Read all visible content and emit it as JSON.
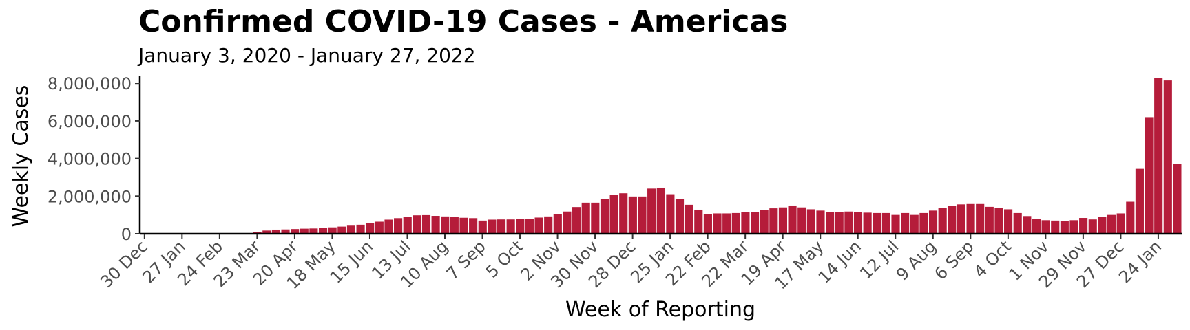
{
  "chart_data": {
    "type": "bar",
    "title": "Confirmed COVID-19 Cases - Americas",
    "subtitle": "January 3, 2020 - January 27, 2022",
    "xlabel": "Week of Reporting",
    "ylabel": "Weekly Cases",
    "ylim": [
      0,
      8300000
    ],
    "yticks": [
      0,
      2000000,
      4000000,
      6000000,
      8000000
    ],
    "ytick_labels": [
      "0",
      "2,000,000",
      "4,000,000",
      "6,000,000",
      "8,000,000"
    ],
    "xtick_labels": [
      "30 Dec",
      "27 Jan",
      "24 Feb",
      "23 Mar",
      "20 Apr",
      "18 May",
      "15 Jun",
      "13 Jul",
      "10 Aug",
      "7 Sep",
      "5 Oct",
      "2 Nov",
      "30 Nov",
      "28 Dec",
      "25 Jan",
      "22 Feb",
      "22 Mar",
      "19 Apr",
      "17 May",
      "14 Jun",
      "12 Jul",
      "9 Aug",
      "6 Sep",
      "4 Oct",
      "1 Nov",
      "29 Nov",
      "27 Dec",
      "24 Jan"
    ],
    "bar_color": "#b51c3a",
    "grid": false,
    "values": [
      0,
      0,
      0,
      0,
      0,
      0,
      0,
      0,
      0,
      0,
      0,
      0,
      100000,
      170000,
      220000,
      230000,
      250000,
      270000,
      280000,
      310000,
      340000,
      380000,
      430000,
      480000,
      550000,
      640000,
      750000,
      830000,
      900000,
      980000,
      990000,
      950000,
      920000,
      880000,
      850000,
      830000,
      700000,
      750000,
      760000,
      760000,
      770000,
      800000,
      860000,
      920000,
      1050000,
      1180000,
      1420000,
      1650000,
      1650000,
      1830000,
      2050000,
      2150000,
      1980000,
      1980000,
      2400000,
      2450000,
      2100000,
      1840000,
      1540000,
      1280000,
      1050000,
      1080000,
      1080000,
      1100000,
      1140000,
      1170000,
      1250000,
      1350000,
      1400000,
      1500000,
      1400000,
      1300000,
      1230000,
      1170000,
      1170000,
      1180000,
      1140000,
      1120000,
      1100000,
      1100000,
      1000000,
      1100000,
      1000000,
      1100000,
      1230000,
      1380000,
      1480000,
      1560000,
      1580000,
      1580000,
      1430000,
      1360000,
      1300000,
      1100000,
      940000,
      780000,
      720000,
      700000,
      680000,
      720000,
      840000,
      760000,
      880000,
      1000000,
      1080000,
      1700000,
      3450000,
      6200000,
      8300000,
      8150000,
      3700000
    ]
  }
}
